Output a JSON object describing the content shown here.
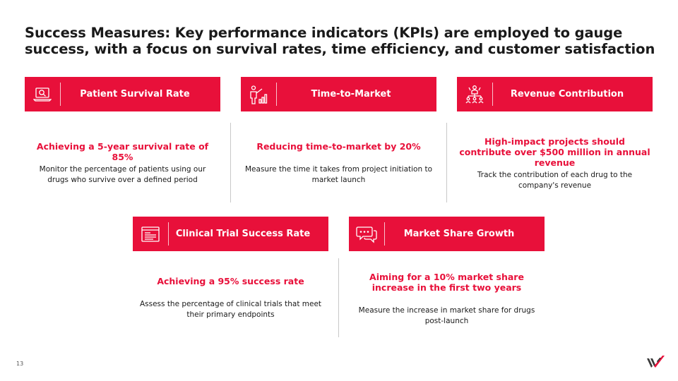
{
  "title": "Success Measures: Key performance indicators (KPIs) are employed to gauge success, with a focus on survival rates, time efficiency, and customer satisfaction",
  "accent_color": "#e8103a",
  "kpis": [
    {
      "header": "Patient Survival Rate",
      "icon": "laptop-search-icon",
      "headline": "Achieving a 5-year survival rate of 85%",
      "description": "Monitor the percentage of patients using our drugs who survive over a defined period"
    },
    {
      "header": "Time-to-Market",
      "icon": "presenter-chart-icon",
      "headline": "Reducing time-to-market by 20%",
      "description": "Measure the time it takes from project initiation to market launch"
    },
    {
      "header": "Revenue Contribution",
      "icon": "org-structure-icon",
      "headline": "High-impact projects should contribute over $500 million in annual revenue",
      "description": "Track the contribution of each drug to the company's revenue"
    },
    {
      "header": "Clinical Trial Success Rate",
      "icon": "document-icon",
      "headline": "Achieving a 95% success rate",
      "description": "Assess the percentage of clinical trials that meet their primary endpoints"
    },
    {
      "header": "Market Share Growth",
      "icon": "chat-bubbles-icon",
      "headline": "Aiming for a 10% market share increase in the first two years",
      "description": "Measure the increase in market share for drugs post-launch"
    }
  ],
  "page_number": "13",
  "logo_icon": "brand-logo-icon"
}
